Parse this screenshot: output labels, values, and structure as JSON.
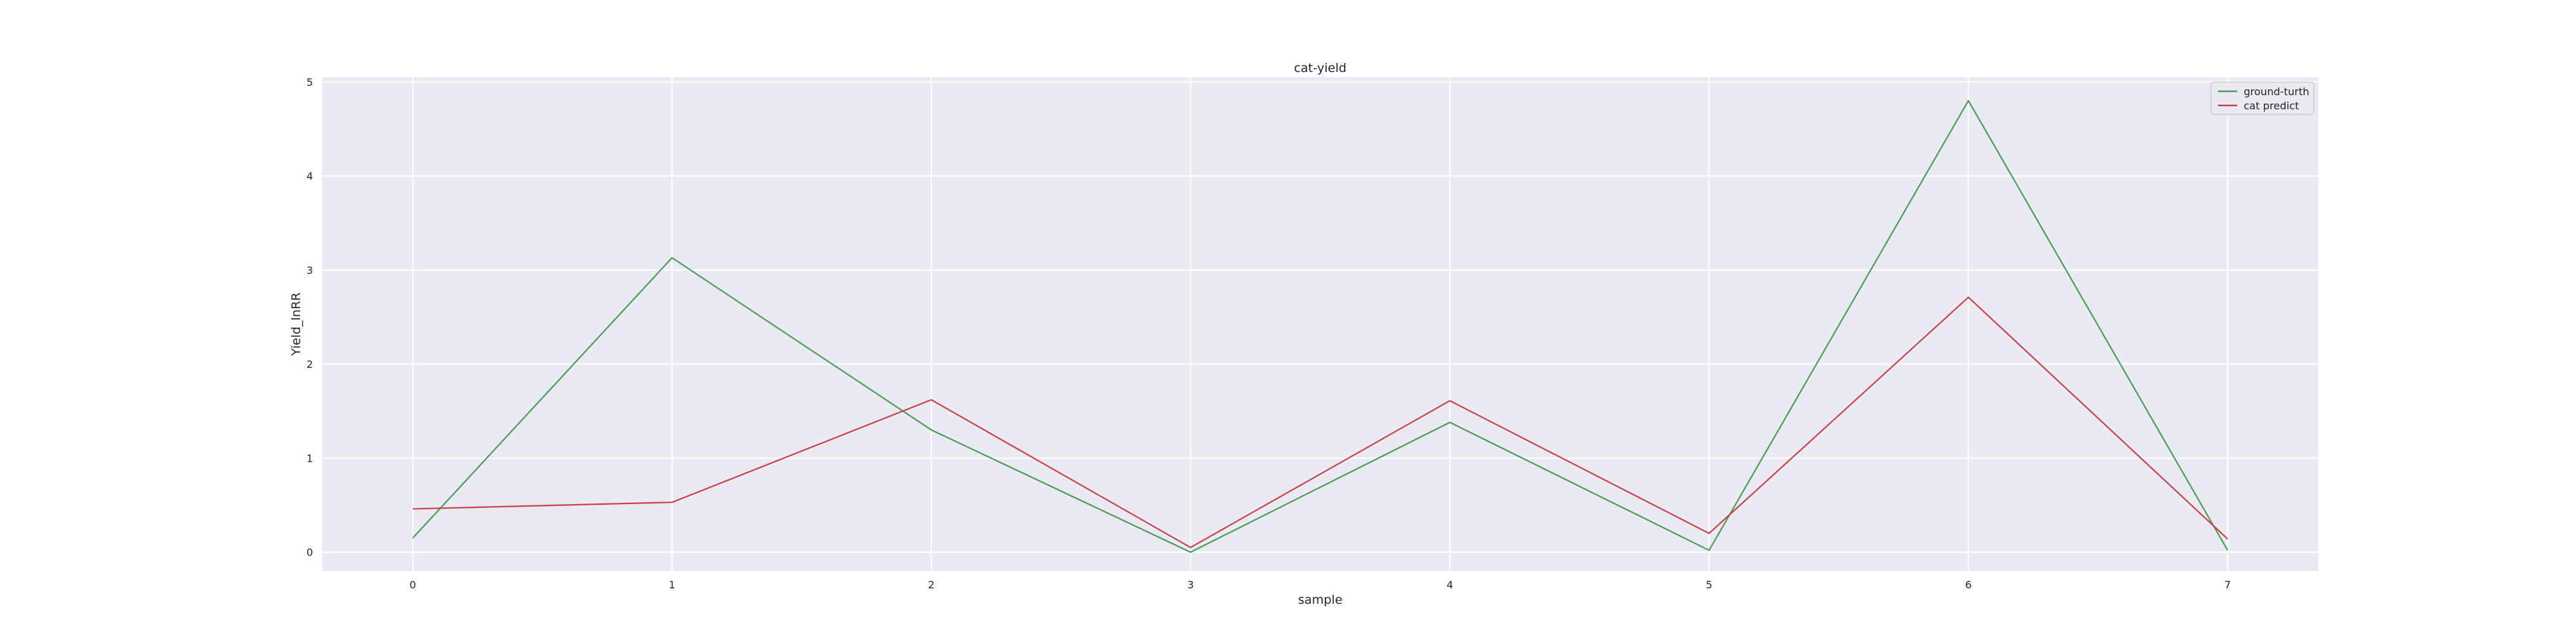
{
  "chart_data": {
    "type": "line",
    "title": "cat-yield",
    "xlabel": "sample",
    "ylabel": "Yield_lnRR",
    "x": [
      0,
      1,
      2,
      3,
      4,
      5,
      6,
      7
    ],
    "xlim": [
      -0.35,
      7.35
    ],
    "ylim": [
      -0.2,
      5.05
    ],
    "xticks": [
      0,
      1,
      2,
      3,
      4,
      5,
      6,
      7
    ],
    "yticks": [
      0,
      1,
      2,
      3,
      4,
      5
    ],
    "grid": true,
    "legend_position": "top-right",
    "series": [
      {
        "name": "ground-turth",
        "color": "#4c9a5a",
        "values": [
          0.15,
          3.13,
          1.3,
          0.0,
          1.38,
          0.02,
          4.8,
          0.02
        ]
      },
      {
        "name": "cat predict",
        "color": "#c8404c",
        "values": [
          0.46,
          0.53,
          1.62,
          0.05,
          1.61,
          0.2,
          2.71,
          0.14
        ]
      }
    ]
  }
}
